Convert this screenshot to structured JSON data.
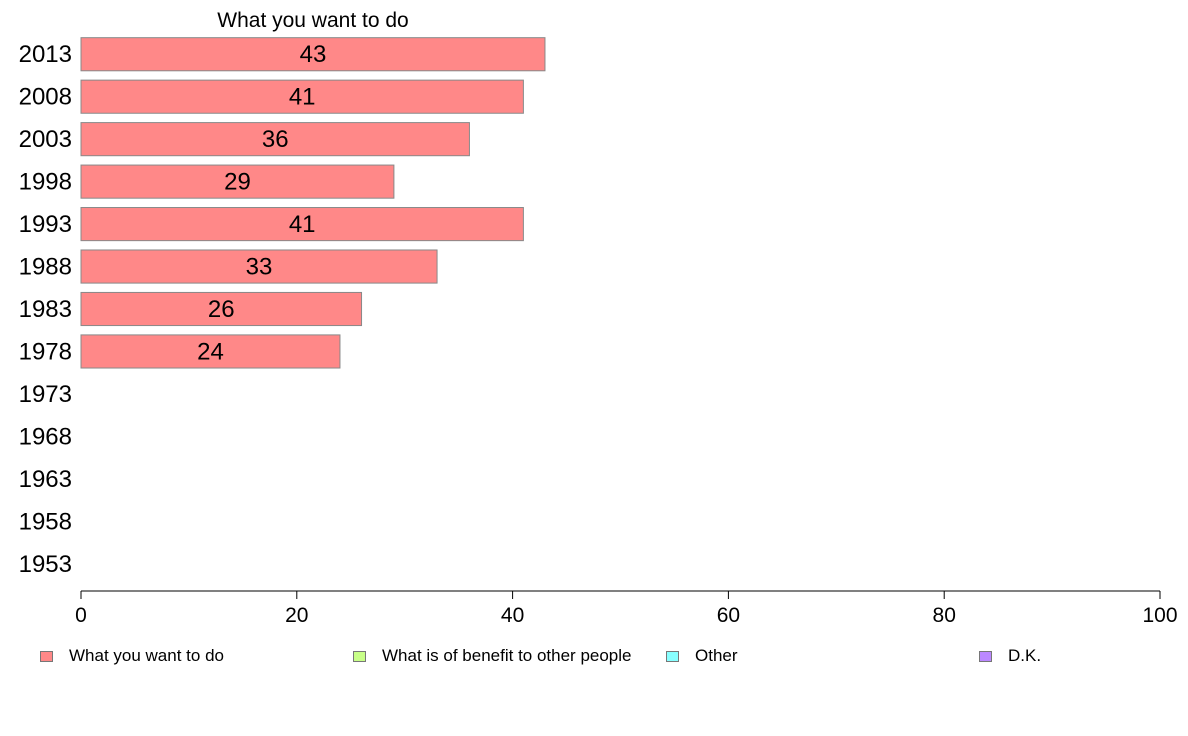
{
  "chart_data": {
    "type": "bar",
    "orientation": "horizontal",
    "title": "What you want to do",
    "categories": [
      "2013",
      "2008",
      "2003",
      "1998",
      "1993",
      "1988",
      "1983",
      "1978",
      "1973",
      "1968",
      "1963",
      "1958",
      "1953"
    ],
    "series": [
      {
        "name": "What you want to do",
        "color": "#ff8888",
        "values": [
          43,
          41,
          36,
          29,
          41,
          33,
          26,
          24,
          null,
          null,
          null,
          null,
          null
        ]
      }
    ],
    "xlim": [
      0,
      100
    ],
    "xticks": [
      "0",
      "20",
      "40",
      "60",
      "80",
      "100"
    ],
    "xlabel": "",
    "ylabel": "",
    "grid": false,
    "legend_position": "bottom",
    "legend": [
      {
        "label": "What you want to do",
        "color": "#ff8888"
      },
      {
        "label": "What is of benefit to other people",
        "color": "#c8ff88"
      },
      {
        "label": "Other",
        "color": "#88ffff"
      },
      {
        "label": "D.K.",
        "color": "#bb88ff"
      }
    ]
  }
}
